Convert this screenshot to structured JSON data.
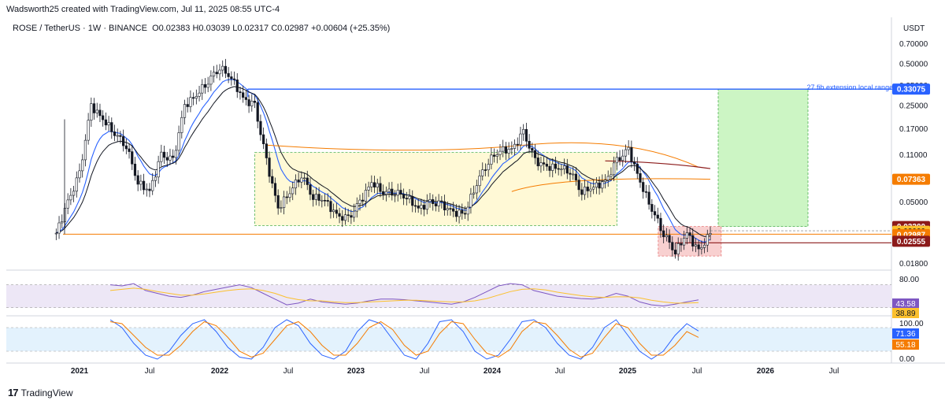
{
  "header": {
    "credit": "Wadsworth25 created with TradingView.com, Jul 11, 2025 08:55 UTC-4"
  },
  "symbol_line": {
    "symbol": "ROSE / TetherUS · 1W · BINANCE",
    "open": "O0.02383",
    "high": "H0.03039",
    "low": "L0.02317",
    "close": "C0.02987",
    "change": "+0.00604 (+25.35%)"
  },
  "currency": "USDT",
  "footer": {
    "logo_text": "TradingView"
  },
  "colors": {
    "up": "#131722",
    "down": "#131722",
    "ema_fast": "#2962ff",
    "ema_slow": "#131722",
    "ma_orange": "#f57c00",
    "ma_red": "#8b1a1a",
    "range_box": "#fff9d6",
    "target_box": "#ccf5c4",
    "stop_box": "#f8d0d0",
    "rsi": "#7e57c2",
    "rsi_ma": "#fbc02d",
    "stoch_k": "#2962ff",
    "stoch_d": "#f57c00"
  },
  "annotations": {
    "fib_label": ".27 fib extension local range -"
  },
  "chart_data": [
    {
      "type": "candlestick",
      "title": "ROSE / TetherUS · 1W · BINANCE",
      "y_scale": "log",
      "y_ticks": [
        "0.70000",
        "0.50000",
        "0.35000",
        "0.25000",
        "0.17000",
        "0.11000",
        "0.07363",
        "0.05000",
        "0.03200",
        "0.03000",
        "0.02987",
        "0.02555",
        "0.01800"
      ],
      "x_ticks": [
        "2021",
        "Jul",
        "2022",
        "Jul",
        "2023",
        "Jul",
        "2024",
        "Jul",
        "2025",
        "Jul",
        "2026",
        "Jul"
      ],
      "price_labels": [
        {
          "value": "0.33075",
          "color": "#2962ff"
        },
        {
          "value": "0.07363",
          "color": "#f57c00"
        },
        {
          "value": "0.03200",
          "color": "#8b1a1a"
        },
        {
          "value": "0.03000",
          "color": "#fbc02d"
        },
        {
          "value": "0.02987",
          "color": "#f57c00"
        },
        {
          "value": "0.02555",
          "color": "#8b1a1a"
        }
      ],
      "weekly_close_approx": [
        {
          "date": "2020-11",
          "close": 0.03
        },
        {
          "date": "2020-12",
          "close": 0.05
        },
        {
          "date": "2021-01",
          "close": 0.08
        },
        {
          "date": "2021-02",
          "close": 0.25
        },
        {
          "date": "2021-03",
          "close": 0.2
        },
        {
          "date": "2021-04",
          "close": 0.16
        },
        {
          "date": "2021-05",
          "close": 0.13
        },
        {
          "date": "2021-06",
          "close": 0.07
        },
        {
          "date": "2021-07",
          "close": 0.06
        },
        {
          "date": "2021-08",
          "close": 0.11
        },
        {
          "date": "2021-09",
          "close": 0.1
        },
        {
          "date": "2021-10",
          "close": 0.25
        },
        {
          "date": "2021-11",
          "close": 0.3
        },
        {
          "date": "2021-12",
          "close": 0.38
        },
        {
          "date": "2022-01",
          "close": 0.48
        },
        {
          "date": "2022-02",
          "close": 0.4
        },
        {
          "date": "2022-03",
          "close": 0.28
        },
        {
          "date": "2022-04",
          "close": 0.25
        },
        {
          "date": "2022-05",
          "close": 0.1
        },
        {
          "date": "2022-06",
          "close": 0.045
        },
        {
          "date": "2022-07",
          "close": 0.06
        },
        {
          "date": "2022-08",
          "close": 0.08
        },
        {
          "date": "2022-09",
          "close": 0.055
        },
        {
          "date": "2022-10",
          "close": 0.052
        },
        {
          "date": "2022-11",
          "close": 0.04
        },
        {
          "date": "2022-12",
          "close": 0.038
        },
        {
          "date": "2023-01",
          "close": 0.05
        },
        {
          "date": "2023-02",
          "close": 0.07
        },
        {
          "date": "2023-03",
          "close": 0.06
        },
        {
          "date": "2023-04",
          "close": 0.06
        },
        {
          "date": "2023-05",
          "close": 0.055
        },
        {
          "date": "2023-06",
          "close": 0.045
        },
        {
          "date": "2023-07",
          "close": 0.05
        },
        {
          "date": "2023-08",
          "close": 0.048
        },
        {
          "date": "2023-09",
          "close": 0.042
        },
        {
          "date": "2023-10",
          "close": 0.042
        },
        {
          "date": "2023-11",
          "close": 0.07
        },
        {
          "date": "2023-12",
          "close": 0.1
        },
        {
          "date": "2024-01",
          "close": 0.12
        },
        {
          "date": "2024-02",
          "close": 0.12
        },
        {
          "date": "2024-03",
          "close": 0.16
        },
        {
          "date": "2024-04",
          "close": 0.1
        },
        {
          "date": "2024-05",
          "close": 0.09
        },
        {
          "date": "2024-06",
          "close": 0.09
        },
        {
          "date": "2024-07",
          "close": 0.085
        },
        {
          "date": "2024-08",
          "close": 0.06
        },
        {
          "date": "2024-09",
          "close": 0.065
        },
        {
          "date": "2024-10",
          "close": 0.07
        },
        {
          "date": "2024-11",
          "close": 0.1
        },
        {
          "date": "2024-12",
          "close": 0.12
        },
        {
          "date": "2025-01",
          "close": 0.07
        },
        {
          "date": "2025-02",
          "close": 0.045
        },
        {
          "date": "2025-03",
          "close": 0.03
        },
        {
          "date": "2025-04",
          "close": 0.022
        },
        {
          "date": "2025-05",
          "close": 0.03
        },
        {
          "date": "2025-06",
          "close": 0.022
        },
        {
          "date": "2025-07",
          "close": 0.02987
        }
      ]
    },
    {
      "type": "line",
      "name": "RSI",
      "y_ticks": [
        "80.00"
      ],
      "value_labels": [
        {
          "value": "43.58",
          "color": "#7e57c2"
        },
        {
          "value": "38.89",
          "color": "#fbc02d"
        }
      ],
      "series": [
        {
          "name": "RSI",
          "values": [
            70,
            68,
            72,
            60,
            55,
            50,
            48,
            52,
            58,
            62,
            66,
            70,
            65,
            55,
            45,
            35,
            38,
            45,
            40,
            38,
            36,
            38,
            42,
            45,
            45,
            44,
            42,
            40,
            38,
            36,
            40,
            48,
            58,
            68,
            72,
            70,
            60,
            55,
            50,
            48,
            46,
            45,
            48,
            55,
            50,
            40,
            35,
            33,
            36,
            40,
            43.58
          ]
        },
        {
          "name": "RSI MA",
          "values": [
            60,
            62,
            64,
            62,
            58,
            55,
            52,
            52,
            54,
            57,
            60,
            62,
            63,
            60,
            55,
            48,
            44,
            42,
            42,
            40,
            39,
            39,
            40,
            41,
            42,
            43,
            43,
            42,
            41,
            40,
            40,
            42,
            46,
            52,
            58,
            62,
            63,
            61,
            57,
            54,
            51,
            49,
            48,
            49,
            49,
            47,
            43,
            40,
            38,
            38,
            38.89
          ]
        }
      ]
    },
    {
      "type": "line",
      "name": "Stoch RSI",
      "y_ticks": [
        "100.00",
        "0.00"
      ],
      "value_labels": [
        {
          "value": "71.36",
          "color": "#2962ff"
        },
        {
          "value": "55.18",
          "color": "#f57c00"
        }
      ],
      "series": [
        {
          "name": "K",
          "values": [
            100,
            80,
            40,
            10,
            0,
            20,
            60,
            90,
            100,
            70,
            30,
            5,
            0,
            30,
            80,
            100,
            85,
            40,
            10,
            0,
            20,
            70,
            100,
            90,
            50,
            10,
            0,
            40,
            95,
            100,
            70,
            20,
            0,
            10,
            50,
            95,
            100,
            80,
            40,
            10,
            0,
            30,
            80,
            100,
            60,
            20,
            0,
            20,
            60,
            90,
            71.36
          ]
        },
        {
          "name": "D",
          "values": [
            95,
            90,
            60,
            30,
            10,
            10,
            35,
            70,
            95,
            85,
            55,
            20,
            5,
            15,
            50,
            85,
            95,
            70,
            35,
            10,
            10,
            40,
            80,
            95,
            75,
            35,
            10,
            20,
            65,
            95,
            90,
            50,
            15,
            5,
            25,
            70,
            95,
            90,
            60,
            25,
            5,
            15,
            55,
            90,
            80,
            40,
            10,
            10,
            35,
            70,
            55.18
          ]
        }
      ]
    }
  ]
}
